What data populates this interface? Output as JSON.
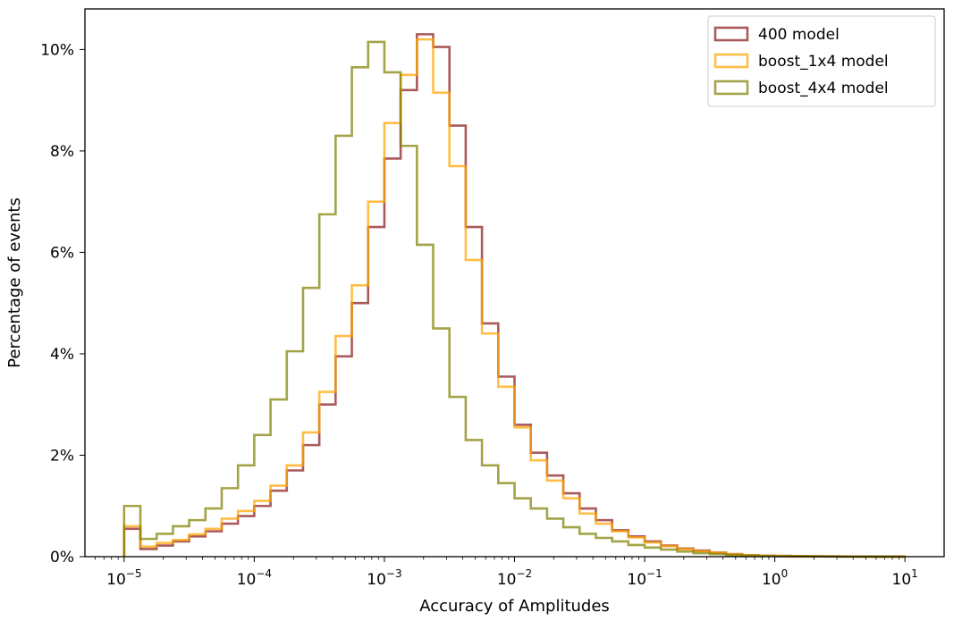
{
  "chart_data": {
    "type": "histogram",
    "xlabel": "Accuracy of Amplitudes",
    "ylabel": "Percentage of events",
    "xscale": "log",
    "xlim": [
      5e-06,
      20
    ],
    "ylim": [
      0,
      10.8
    ],
    "bin_edges_log10": [
      -5.0,
      -4.875,
      -4.75,
      -4.625,
      -4.5,
      -4.375,
      -4.25,
      -4.125,
      -4.0,
      -3.875,
      -3.75,
      -3.625,
      -3.5,
      -3.375,
      -3.25,
      -3.125,
      -3.0,
      -2.875,
      -2.75,
      -2.625,
      -2.5,
      -2.375,
      -2.25,
      -2.125,
      -2.0,
      -1.875,
      -1.75,
      -1.625,
      -1.5,
      -1.375,
      -1.25,
      -1.125,
      -1.0,
      -0.875,
      -0.75,
      -0.625,
      -0.5,
      -0.375,
      -0.25,
      -0.125,
      0.0,
      0.125,
      0.25,
      0.375,
      0.5,
      0.625,
      0.75,
      0.875,
      1.0
    ],
    "x_ticks": [
      {
        "value": 1e-05,
        "label": "10",
        "exp": "−5"
      },
      {
        "value": 0.0001,
        "label": "10",
        "exp": "−4"
      },
      {
        "value": 0.001,
        "label": "10",
        "exp": "−3"
      },
      {
        "value": 0.01,
        "label": "10",
        "exp": "−2"
      },
      {
        "value": 0.1,
        "label": "10",
        "exp": "−1"
      },
      {
        "value": 1,
        "label": "10",
        "exp": "0"
      },
      {
        "value": 10,
        "label": "10",
        "exp": "1"
      }
    ],
    "y_ticks": [
      {
        "value": 0,
        "label": "0%"
      },
      {
        "value": 2,
        "label": "2%"
      },
      {
        "value": 4,
        "label": "4%"
      },
      {
        "value": 6,
        "label": "6%"
      },
      {
        "value": 8,
        "label": "8%"
      },
      {
        "value": 10,
        "label": "10%"
      }
    ],
    "legend_position": "top-right",
    "grid": false,
    "series": [
      {
        "name": "400 model",
        "color": "#8b1a1a",
        "values": [
          0.55,
          0.15,
          0.22,
          0.3,
          0.4,
          0.5,
          0.65,
          0.8,
          1.0,
          1.3,
          1.7,
          2.2,
          3.0,
          3.95,
          5.0,
          6.5,
          7.85,
          9.2,
          10.3,
          10.05,
          8.5,
          6.5,
          4.6,
          3.55,
          2.6,
          2.05,
          1.6,
          1.25,
          0.95,
          0.72,
          0.52,
          0.4,
          0.3,
          0.22,
          0.16,
          0.12,
          0.08,
          0.05,
          0.03,
          0.02,
          0.015,
          0.01,
          0.008,
          0.005,
          0.003,
          0.002,
          0.001,
          0.001
        ]
      },
      {
        "name": "boost_1x4 model",
        "color": "#ffa500",
        "values": [
          0.6,
          0.2,
          0.27,
          0.33,
          0.44,
          0.55,
          0.75,
          0.9,
          1.1,
          1.4,
          1.8,
          2.45,
          3.25,
          4.35,
          5.35,
          7.0,
          8.55,
          9.5,
          10.2,
          9.15,
          7.7,
          5.85,
          4.4,
          3.35,
          2.55,
          1.9,
          1.5,
          1.15,
          0.85,
          0.65,
          0.5,
          0.38,
          0.28,
          0.21,
          0.15,
          0.11,
          0.08,
          0.05,
          0.03,
          0.02,
          0.015,
          0.01,
          0.008,
          0.005,
          0.003,
          0.002,
          0.001,
          0.001
        ]
      },
      {
        "name": "boost_4x4 model",
        "color": "#808000",
        "values": [
          1.0,
          0.35,
          0.45,
          0.6,
          0.72,
          0.95,
          1.35,
          1.8,
          2.4,
          3.1,
          4.05,
          5.3,
          6.75,
          8.3,
          9.65,
          10.15,
          9.55,
          8.1,
          6.15,
          4.5,
          3.15,
          2.3,
          1.8,
          1.45,
          1.15,
          0.95,
          0.75,
          0.58,
          0.45,
          0.37,
          0.3,
          0.23,
          0.18,
          0.14,
          0.1,
          0.07,
          0.05,
          0.03,
          0.02,
          0.015,
          0.01,
          0.007,
          0.005,
          0.003,
          0.002,
          0.001,
          0.001,
          0.0
        ]
      }
    ]
  }
}
